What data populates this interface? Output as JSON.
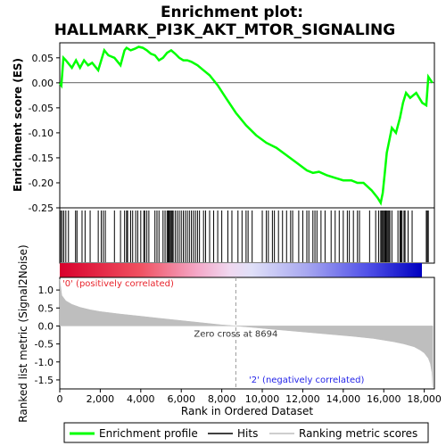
{
  "chart_data": {
    "type": "line",
    "title_line1": "Enrichment plot:",
    "title_line2": "HALLMARK_PI3K_AKT_MTOR_SIGNALING",
    "xlabel": "Rank in Ordered Dataset",
    "es_ylabel": "Enrichment score (ES)",
    "metric_ylabel_line1": "Ranked list metric (Signal2Noise)",
    "xlim": [
      0,
      18500
    ],
    "es_ylim": [
      -0.25,
      0.08
    ],
    "metric_ylim": [
      -1.75,
      1.35
    ],
    "x_ticks": [
      "0",
      "2,000",
      "4,000",
      "6,000",
      "8,000",
      "10,000",
      "12,000",
      "14,000",
      "16,000",
      "18,000"
    ],
    "x_tick_values": [
      0,
      2000,
      4000,
      6000,
      8000,
      10000,
      12000,
      14000,
      16000,
      18000
    ],
    "es_ticks": [
      "0.05",
      "0.00",
      "-0.05",
      "-0.10",
      "-0.15",
      "-0.20",
      "-0.25"
    ],
    "es_tick_values": [
      0.05,
      0.0,
      -0.05,
      -0.1,
      -0.15,
      -0.2,
      -0.25
    ],
    "metric_ticks": [
      "1.0",
      "0.5",
      "0.0",
      "-0.5",
      "-1.0",
      "-1.5"
    ],
    "metric_tick_values": [
      1.0,
      0.5,
      0.0,
      -0.5,
      -1.0,
      -1.5
    ],
    "zero_cross_label": "Zero cross at 8694",
    "zero_cross": 8694,
    "pos_label": "'0' (positively correlated)",
    "neg_label": "'2' (negatively correlated)",
    "series": [
      {
        "name": "Enrichment profile",
        "color": "#00ff00",
        "x": [
          0,
          80,
          180,
          300,
          600,
          800,
          1000,
          1200,
          1400,
          1600,
          1900,
          2050,
          2200,
          2400,
          2700,
          3000,
          3200,
          3300,
          3500,
          3700,
          3900,
          4100,
          4300,
          4500,
          4700,
          4900,
          5100,
          5300,
          5500,
          5700,
          5900,
          6100,
          6300,
          6500,
          6800,
          7100,
          7400,
          7800,
          8200,
          8694,
          9200,
          9700,
          10200,
          10700,
          11200,
          11700,
          12200,
          12500,
          12800,
          13200,
          13600,
          14000,
          14400,
          14700,
          15000,
          15400,
          15700,
          15850,
          15950,
          16050,
          16150,
          16250,
          16400,
          16600,
          16800,
          16950,
          17100,
          17300,
          17600,
          17900,
          18100,
          18200,
          18400
        ],
        "y": [
          0.0,
          -0.005,
          0.05,
          0.045,
          0.03,
          0.045,
          0.03,
          0.045,
          0.035,
          0.04,
          0.025,
          0.045,
          0.065,
          0.055,
          0.05,
          0.035,
          0.065,
          0.07,
          0.065,
          0.068,
          0.072,
          0.07,
          0.065,
          0.058,
          0.055,
          0.045,
          0.05,
          0.06,
          0.065,
          0.058,
          0.05,
          0.045,
          0.045,
          0.042,
          0.035,
          0.025,
          0.015,
          -0.005,
          -0.03,
          -0.06,
          -0.085,
          -0.105,
          -0.12,
          -0.13,
          -0.145,
          -0.16,
          -0.175,
          -0.18,
          -0.178,
          -0.185,
          -0.19,
          -0.195,
          -0.195,
          -0.2,
          -0.2,
          -0.215,
          -0.23,
          -0.24,
          -0.22,
          -0.18,
          -0.14,
          -0.12,
          -0.09,
          -0.1,
          -0.07,
          -0.04,
          -0.02,
          -0.03,
          -0.02,
          -0.04,
          -0.045,
          0.012,
          0.0
        ]
      }
    ],
    "hits": [
      50,
      120,
      200,
      300,
      430,
      780,
      850,
      1100,
      1250,
      1500,
      1900,
      2050,
      2150,
      2250,
      2700,
      3000,
      3200,
      3300,
      3350,
      3500,
      3600,
      3750,
      3850,
      4000,
      4150,
      4200,
      4300,
      4400,
      4700,
      4800,
      4900,
      5100,
      5200,
      5300,
      5350,
      5400,
      5450,
      5500,
      5550,
      5600,
      5700,
      5800,
      5900,
      6000,
      6100,
      6200,
      6300,
      6400,
      6500,
      6600,
      6700,
      6800,
      6900,
      7100,
      7200,
      7400,
      7600,
      7800,
      8000,
      8300,
      8500,
      8800,
      9000,
      9200,
      9300,
      9500,
      10000,
      10200,
      10300,
      10500,
      10600,
      10800,
      11000,
      11200,
      11400,
      11500,
      11800,
      12000,
      12200,
      12300,
      12500,
      12600,
      12700,
      12900,
      13100,
      13400,
      13600,
      13800,
      14000,
      14200,
      14300,
      14500,
      14700,
      14800,
      15300,
      15600,
      15750,
      15850,
      15900,
      15950,
      16000,
      16050,
      16100,
      16150,
      16200,
      16250,
      16300,
      16400,
      16700,
      16800,
      16850,
      16900,
      17000,
      17050,
      17200,
      17400,
      18100,
      18150,
      18200
    ],
    "ranking_metric": {
      "x": [
        0,
        100,
        300,
        600,
        1000,
        1500,
        2000,
        3000,
        4000,
        5000,
        6000,
        7000,
        8000,
        8694,
        9500,
        10500,
        11500,
        12500,
        13500,
        14500,
        15500,
        16500,
        17000,
        17500,
        17800,
        18000,
        18200,
        18300,
        18380,
        18420
      ],
      "y": [
        1.3,
        0.85,
        0.7,
        0.6,
        0.52,
        0.45,
        0.4,
        0.33,
        0.27,
        0.21,
        0.15,
        0.09,
        0.03,
        0.0,
        -0.04,
        -0.09,
        -0.14,
        -0.19,
        -0.24,
        -0.29,
        -0.35,
        -0.44,
        -0.5,
        -0.58,
        -0.67,
        -0.75,
        -0.9,
        -1.05,
        -1.3,
        -1.7
      ]
    },
    "legend": [
      "Enrichment profile",
      "Hits",
      "Ranking metric scores"
    ],
    "colors": {
      "enrichment": "#00ff00",
      "hits": "#000000",
      "metric": "#bebebe",
      "pos_text": "#e8242c",
      "neg_text": "#2424e8",
      "zero_line": "#999999"
    }
  }
}
